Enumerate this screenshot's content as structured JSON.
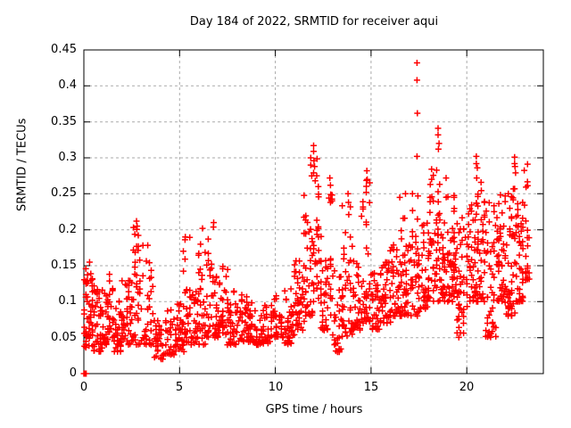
{
  "title": "Day 184 of 2022, SRMTID for receiver aqui",
  "colors": {
    "marker": "#ff0000",
    "grid": "#aaaaaa",
    "frame": "#000000",
    "background": "#ffffff",
    "text": "#000000"
  },
  "chart_data": {
    "type": "scatter",
    "title": "Day 184 of 2022, SRMTID for receiver aqui",
    "xlabel": "GPS time / hours",
    "ylabel": "SRMTID / TECUs",
    "xlim": [
      0,
      24
    ],
    "ylim": [
      0,
      0.45
    ],
    "x_ticks": [
      0,
      5,
      10,
      15,
      20
    ],
    "x_tick_labels": [
      "0",
      "5",
      "10",
      "15",
      "20"
    ],
    "y_ticks": [
      0,
      0.05,
      0.1,
      0.15,
      0.2,
      0.25,
      0.3,
      0.35,
      0.4,
      0.45
    ],
    "y_tick_labels": [
      "0",
      "0.05",
      "0.1",
      "0.15",
      "0.2",
      "0.25",
      "0.3",
      "0.35",
      "0.4",
      "0.45"
    ],
    "grid": true,
    "legend": "none",
    "marker": "plus",
    "marker_size": 7,
    "seed": 184,
    "notable_points": [
      [
        0.0,
        0.0
      ],
      [
        0.06,
        0.0
      ],
      [
        0.12,
        0.0
      ],
      [
        0.3,
        0.155
      ],
      [
        2.75,
        0.212
      ],
      [
        2.78,
        0.205
      ],
      [
        5.3,
        0.19
      ],
      [
        6.2,
        0.202
      ],
      [
        6.78,
        0.21
      ],
      [
        11.85,
        0.3
      ],
      [
        11.85,
        0.29
      ],
      [
        11.9,
        0.275
      ],
      [
        12.0,
        0.317
      ],
      [
        12.0,
        0.309
      ],
      [
        12.02,
        0.296
      ],
      [
        12.05,
        0.288
      ],
      [
        12.0,
        0.279
      ],
      [
        12.85,
        0.272
      ],
      [
        12.88,
        0.262
      ],
      [
        13.8,
        0.25
      ],
      [
        13.82,
        0.238
      ],
      [
        14.78,
        0.282
      ],
      [
        14.8,
        0.27
      ],
      [
        14.75,
        0.252
      ],
      [
        16.5,
        0.245
      ],
      [
        16.8,
        0.25
      ],
      [
        17.4,
        0.432
      ],
      [
        17.4,
        0.408
      ],
      [
        17.42,
        0.362
      ],
      [
        17.4,
        0.302
      ],
      [
        17.45,
        0.247
      ],
      [
        18.5,
        0.341
      ],
      [
        18.5,
        0.332
      ],
      [
        18.55,
        0.32
      ],
      [
        18.52,
        0.312
      ],
      [
        20.5,
        0.302
      ],
      [
        20.5,
        0.292
      ],
      [
        20.55,
        0.286
      ],
      [
        20.52,
        0.272
      ],
      [
        22.5,
        0.301
      ],
      [
        22.5,
        0.292
      ],
      [
        22.52,
        0.288
      ],
      [
        22.55,
        0.279
      ],
      [
        22.5,
        0.257
      ]
    ],
    "density_bands": [
      [
        0.02,
        0.45,
        0.035,
        0.15,
        50
      ],
      [
        0.45,
        1.0,
        0.03,
        0.13,
        42
      ],
      [
        1.0,
        1.5,
        0.04,
        0.14,
        40
      ],
      [
        1.5,
        2.0,
        0.03,
        0.11,
        36
      ],
      [
        2.0,
        2.5,
        0.04,
        0.13,
        36
      ],
      [
        2.5,
        3.0,
        0.04,
        0.21,
        40
      ],
      [
        3.0,
        3.6,
        0.04,
        0.18,
        36
      ],
      [
        3.6,
        4.2,
        0.02,
        0.08,
        32
      ],
      [
        4.2,
        4.8,
        0.025,
        0.09,
        32
      ],
      [
        4.8,
        5.2,
        0.03,
        0.12,
        28
      ],
      [
        5.2,
        5.6,
        0.04,
        0.19,
        30
      ],
      [
        5.6,
        6.0,
        0.04,
        0.12,
        28
      ],
      [
        6.0,
        6.5,
        0.04,
        0.2,
        34
      ],
      [
        6.5,
        7.0,
        0.05,
        0.21,
        34
      ],
      [
        7.0,
        7.5,
        0.05,
        0.15,
        34
      ],
      [
        7.5,
        8.0,
        0.04,
        0.12,
        34
      ],
      [
        8.0,
        8.6,
        0.045,
        0.11,
        36
      ],
      [
        8.6,
        9.2,
        0.04,
        0.1,
        36
      ],
      [
        9.2,
        9.8,
        0.04,
        0.095,
        34
      ],
      [
        9.8,
        10.4,
        0.05,
        0.11,
        36
      ],
      [
        10.4,
        11.0,
        0.04,
        0.12,
        36
      ],
      [
        11.0,
        11.5,
        0.06,
        0.16,
        38
      ],
      [
        11.5,
        12.0,
        0.07,
        0.25,
        40
      ],
      [
        12.0,
        12.3,
        0.1,
        0.3,
        24
      ],
      [
        12.3,
        12.8,
        0.06,
        0.2,
        34
      ],
      [
        12.8,
        13.0,
        0.08,
        0.26,
        16
      ],
      [
        13.0,
        13.5,
        0.03,
        0.15,
        36
      ],
      [
        13.5,
        14.0,
        0.05,
        0.24,
        36
      ],
      [
        14.0,
        14.5,
        0.06,
        0.16,
        36
      ],
      [
        14.5,
        15.0,
        0.07,
        0.27,
        36
      ],
      [
        15.0,
        15.5,
        0.06,
        0.14,
        36
      ],
      [
        15.5,
        16.0,
        0.07,
        0.16,
        36
      ],
      [
        16.0,
        16.5,
        0.08,
        0.18,
        36
      ],
      [
        16.5,
        17.0,
        0.08,
        0.22,
        36
      ],
      [
        17.0,
        17.5,
        0.08,
        0.26,
        36
      ],
      [
        17.5,
        18.0,
        0.09,
        0.22,
        38
      ],
      [
        18.0,
        18.5,
        0.1,
        0.3,
        42
      ],
      [
        18.5,
        19.0,
        0.1,
        0.28,
        46
      ],
      [
        19.0,
        19.5,
        0.1,
        0.25,
        42
      ],
      [
        19.5,
        20.0,
        0.05,
        0.22,
        42
      ],
      [
        20.0,
        20.5,
        0.1,
        0.24,
        42
      ],
      [
        20.5,
        21.0,
        0.1,
        0.27,
        42
      ],
      [
        21.0,
        21.5,
        0.05,
        0.24,
        42
      ],
      [
        21.5,
        22.0,
        0.1,
        0.25,
        46
      ],
      [
        22.0,
        22.5,
        0.08,
        0.26,
        46
      ],
      [
        22.5,
        23.0,
        0.1,
        0.24,
        46
      ],
      [
        23.0,
        23.3,
        0.13,
        0.3,
        24
      ]
    ]
  }
}
